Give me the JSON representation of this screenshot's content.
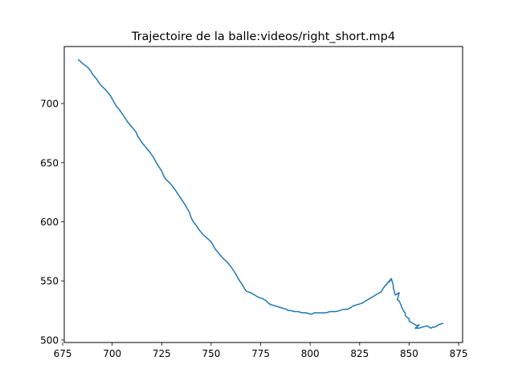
{
  "chart_data": {
    "type": "line",
    "title": "Trajectoire de la balle:videos/right_short.mp4",
    "xlabel": "",
    "ylabel": "",
    "xlim": [
      675.8,
      877.0
    ],
    "ylim": [
      497.9,
      748.2
    ],
    "xticks": [
      675,
      700,
      725,
      750,
      775,
      800,
      825,
      850,
      875
    ],
    "yticks": [
      500,
      550,
      600,
      650,
      700
    ],
    "grid": false,
    "series": [
      {
        "color": "#1f77b4",
        "x": [
          683,
          685,
          688,
          689,
          690,
          692,
          694,
          697,
          699,
          700,
          701,
          702,
          704,
          706,
          708,
          710,
          712,
          713,
          715,
          717,
          719,
          721,
          723,
          725,
          726,
          727,
          729,
          731,
          733,
          735,
          737,
          739,
          740,
          741,
          742,
          744,
          746,
          748,
          750,
          752,
          754,
          756,
          758,
          760,
          762,
          764,
          766,
          767,
          768,
          770,
          772,
          773,
          774,
          776,
          778,
          779,
          780,
          782,
          784,
          786,
          788,
          789,
          790,
          792,
          794,
          796,
          798,
          800,
          801,
          802,
          804,
          806,
          808,
          810,
          812,
          813,
          815,
          817,
          819,
          820,
          821,
          822,
          824,
          826,
          827,
          828,
          829,
          830,
          832,
          834,
          836,
          837,
          838,
          839,
          840,
          841,
          840,
          841,
          842,
          842,
          843,
          845,
          844,
          845,
          846,
          847,
          848,
          848,
          849,
          850,
          850,
          851,
          852,
          853,
          854,
          855,
          854,
          853,
          855,
          857,
          859,
          860,
          861,
          862,
          863,
          865,
          867
        ],
        "y": [
          737,
          734,
          730,
          728,
          725,
          721,
          716,
          711,
          707,
          704,
          701,
          698,
          694,
          689,
          684,
          680,
          676,
          672,
          667,
          663,
          659,
          654,
          648,
          643,
          639,
          636,
          633,
          629,
          624,
          619,
          614,
          608,
          603,
          600,
          598,
          593,
          589,
          586,
          583,
          577,
          573,
          569,
          566,
          562,
          557,
          551,
          546,
          543,
          541,
          540,
          538,
          537,
          536,
          535,
          533,
          531,
          530,
          529,
          528,
          527,
          526,
          525,
          525,
          524,
          524,
          523,
          523,
          522,
          522,
          523,
          523,
          523,
          523,
          524,
          524,
          524,
          525,
          526,
          526,
          527,
          528,
          529,
          530,
          531,
          532,
          533,
          534,
          535,
          537,
          539,
          541,
          544,
          546,
          548,
          550,
          552,
          549,
          552,
          546,
          544,
          538,
          540,
          534,
          533,
          529,
          525,
          523,
          521,
          519,
          518,
          516,
          515,
          514,
          513,
          512,
          513,
          511,
          510,
          510,
          511,
          512,
          511,
          510,
          511,
          511,
          513,
          514
        ]
      }
    ]
  }
}
